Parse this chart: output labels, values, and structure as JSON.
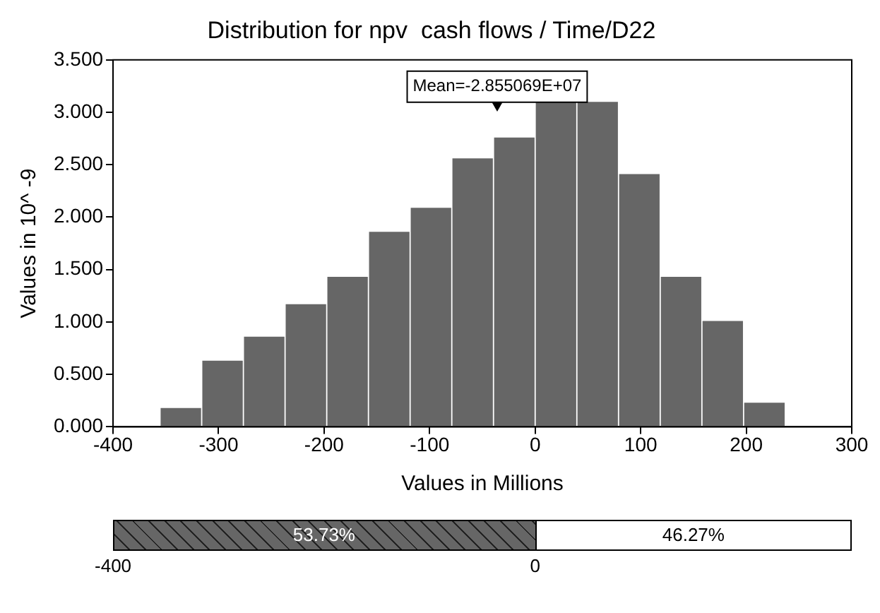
{
  "chart_data": {
    "type": "histogram",
    "title": "Distribution for npv  cash flows / Time/D22",
    "xlabel": "Values in Millions",
    "ylabel": "Values in 10^ -9",
    "bins": [
      -355.5,
      -316,
      -276.5,
      -237,
      -197.5,
      -158,
      -118.5,
      -79,
      -39.5,
      0,
      39.5,
      79,
      118.5,
      158,
      197.5,
      237
    ],
    "values": [
      0.18,
      0.63,
      0.86,
      1.17,
      1.43,
      1.86,
      2.09,
      2.56,
      2.76,
      3.1,
      3.1,
      2.41,
      1.43,
      1.01,
      0.23
    ],
    "color": "#666666",
    "xlim": [
      -400,
      300
    ],
    "xticks": [
      -400,
      -300,
      -200,
      -100,
      0,
      100,
      200,
      300
    ],
    "ylim": [
      0,
      3.5
    ],
    "yticks": [
      {
        "value": 0,
        "label": "0.000"
      },
      {
        "value": 0.5,
        "label": "0.500"
      },
      {
        "value": 1,
        "label": "1.000"
      },
      {
        "value": 1.5,
        "label": "1.500"
      },
      {
        "value": 2,
        "label": "2.000"
      },
      {
        "value": 2.5,
        "label": "2.500"
      },
      {
        "value": 3,
        "label": "3.000"
      },
      {
        "value": 3.5,
        "label": "3.500"
      }
    ],
    "grid": false,
    "legend": false,
    "annotations": [
      "Mean=-2.855069E+07",
      "53.73%",
      "46.27%",
      "-400",
      "0"
    ]
  }
}
